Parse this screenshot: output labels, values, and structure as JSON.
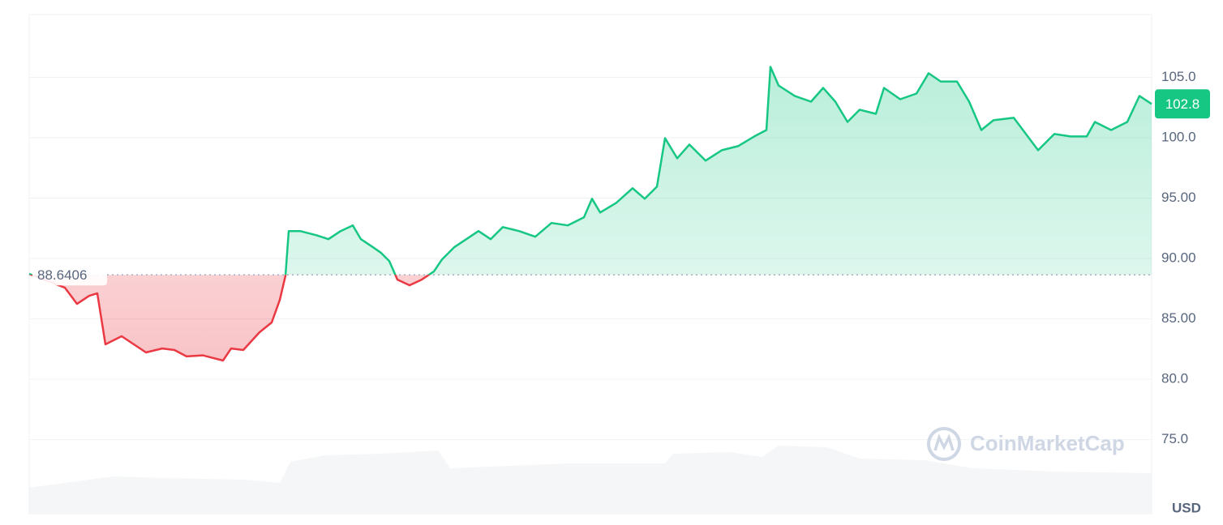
{
  "chart_data": {
    "type": "line",
    "x": [
      0,
      44,
      59,
      74,
      84,
      94,
      114,
      129,
      144,
      164,
      179,
      194,
      214,
      239,
      249,
      264,
      284,
      299,
      309,
      316,
      320,
      334,
      354,
      369,
      384,
      399,
      409,
      424,
      434,
      444,
      454,
      469,
      484,
      499,
      509,
      524,
      539,
      554,
      569,
      584,
      604,
      624,
      644,
      664,
      684,
      694,
      704,
      724,
      744,
      759,
      774,
      784,
      799,
      814,
      834,
      854,
      874,
      894,
      909,
      914,
      924,
      944,
      964,
      979,
      994,
      1009,
      1024,
      1044,
      1054,
      1074,
      1094,
      1109,
      1124,
      1144,
      1159,
      1174,
      1189,
      1214,
      1229,
      1244,
      1264,
      1284,
      1304,
      1314,
      1334,
      1354,
      1369,
      1384
    ],
    "values": [
      88.72,
      87.58,
      86.24,
      86.91,
      87.11,
      82.89,
      83.56,
      82.89,
      82.22,
      82.55,
      82.42,
      81.89,
      81.98,
      81.55,
      82.55,
      82.42,
      83.89,
      84.7,
      86.57,
      88.58,
      92.27,
      92.27,
      91.93,
      91.6,
      92.27,
      92.74,
      91.6,
      90.93,
      90.46,
      89.79,
      88.25,
      87.78,
      88.25,
      88.92,
      89.92,
      90.93,
      91.6,
      92.27,
      91.6,
      92.6,
      92.27,
      91.8,
      92.94,
      92.74,
      93.41,
      94.95,
      93.81,
      94.61,
      95.82,
      94.95,
      95.95,
      99.97,
      98.3,
      99.44,
      98.1,
      98.97,
      99.3,
      100.11,
      100.64,
      105.87,
      104.33,
      103.46,
      102.99,
      104.13,
      102.99,
      101.31,
      102.32,
      101.98,
      104.13,
      103.19,
      103.66,
      105.34,
      104.66,
      104.66,
      102.99,
      100.64,
      101.45,
      101.65,
      100.31,
      98.97,
      100.31,
      100.11,
      100.11,
      101.31,
      100.64,
      101.31,
      103.46,
      102.8
    ],
    "xlim": [
      0,
      1384
    ],
    "ylim": [
      68.8,
      110.2
    ],
    "yticks": [
      {
        "value": 75,
        "label": "75.0"
      },
      {
        "value": 80,
        "label": "80.0"
      },
      {
        "value": 85,
        "label": "85.00"
      },
      {
        "value": 90,
        "label": "90.00"
      },
      {
        "value": 95,
        "label": "95.00"
      },
      {
        "value": 100,
        "label": "100.0"
      },
      {
        "value": 105,
        "label": "105.0"
      }
    ],
    "baseline": 88.6406,
    "last_price": 102.8,
    "up_color": "#16c784",
    "down_color": "#ea3943",
    "grid": true,
    "currency": "USD",
    "watermark": "CoinMarketCap"
  }
}
